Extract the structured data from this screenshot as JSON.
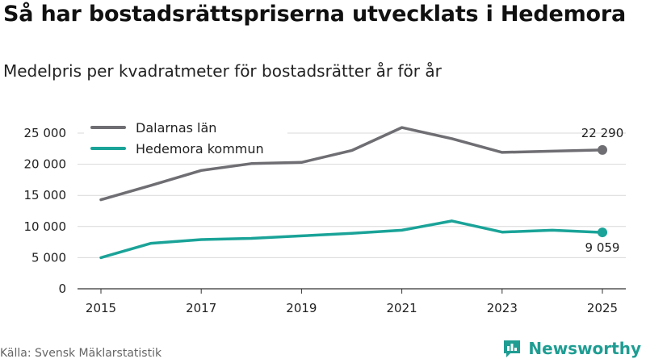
{
  "title": "Så har bostadsrättspriserna utvecklats i Hedemora",
  "subtitle": "Medelpris per kvadratmeter för bostadsrätter år för år",
  "source": "Källa: Svensk Mäklarstatistik",
  "brand": {
    "name": "Newsworthy",
    "icon": "newsworthy-logo-icon",
    "color": "#1f9d93"
  },
  "chart_data": {
    "type": "line",
    "title": "Så har bostadsrättspriserna utvecklats i Hedemora",
    "subtitle": "Medelpris per kvadratmeter för bostadsrätter år för år",
    "xlabel": "",
    "ylabel": "",
    "x": [
      2015,
      2016,
      2017,
      2018,
      2019,
      2020,
      2021,
      2022,
      2023,
      2024,
      2025
    ],
    "x_ticks": [
      "2015",
      "2017",
      "2019",
      "2021",
      "2023",
      "2025"
    ],
    "x_tick_values": [
      2015,
      2017,
      2019,
      2021,
      2023,
      2025
    ],
    "y_ticks": [
      "0",
      "5 000",
      "10 000",
      "15 000",
      "20 000",
      "25 000"
    ],
    "y_tick_values": [
      0,
      5000,
      10000,
      15000,
      20000,
      25000
    ],
    "xlim": [
      2015,
      2025
    ],
    "ylim": [
      0,
      25000
    ],
    "grid": "horizontal",
    "legend_position": "top-left",
    "series": [
      {
        "name": "Dalarnas län",
        "color": "#6e6e73",
        "values": [
          14300,
          16600,
          19000,
          20100,
          20300,
          22200,
          25900,
          24100,
          21900,
          22100,
          22290
        ],
        "end_label": "22 290"
      },
      {
        "name": "Hedemora kommun",
        "color": "#1aa398",
        "values": [
          5000,
          7300,
          7900,
          8100,
          8500,
          8900,
          9400,
          10900,
          9100,
          9400,
          9059
        ],
        "end_label": "9 059"
      }
    ]
  }
}
